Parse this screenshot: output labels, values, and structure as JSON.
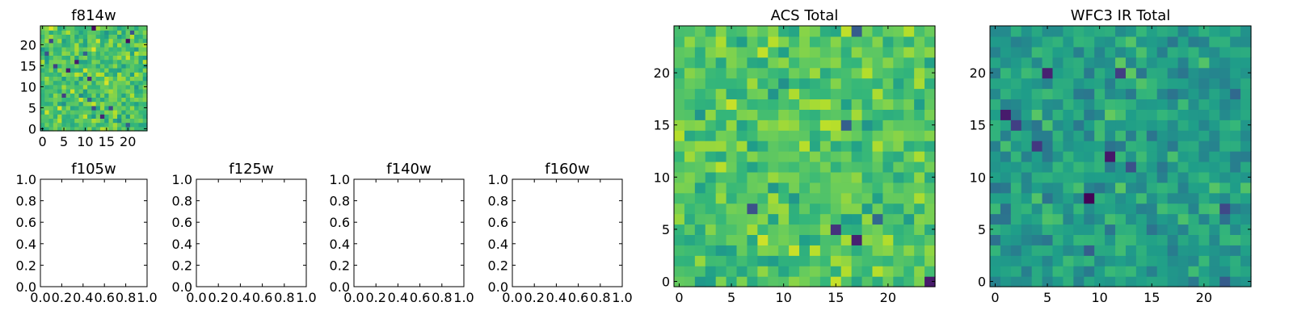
{
  "chart_data": [
    {
      "type": "heatmap",
      "title": "f814w",
      "xticks": [
        "0",
        "5",
        "10",
        "15",
        "20"
      ],
      "yticks": [
        "0",
        "5",
        "10",
        "15",
        "20"
      ],
      "xlim": [
        -0.5,
        24.5
      ],
      "ylim": [
        -0.5,
        24.5
      ],
      "grid_size": 25,
      "colormap": "viridis",
      "seed": 814,
      "base": 0.72,
      "spread": 0.18,
      "dark_spots": 16
    },
    {
      "type": "empty",
      "title": "f105w",
      "xticks": [
        "0.0",
        "0.2",
        "0.4",
        "0.6",
        "0.8",
        "1.0"
      ],
      "yticks": [
        "0.0",
        "0.2",
        "0.4",
        "0.6",
        "0.8",
        "1.0"
      ],
      "xlim": [
        0,
        1
      ],
      "ylim": [
        0,
        1
      ]
    },
    {
      "type": "empty",
      "title": "f125w",
      "xticks": [
        "0.0",
        "0.2",
        "0.4",
        "0.6",
        "0.8",
        "1.0"
      ],
      "yticks": [
        "0.0",
        "0.2",
        "0.4",
        "0.6",
        "0.8",
        "1.0"
      ],
      "xlim": [
        0,
        1
      ],
      "ylim": [
        0,
        1
      ]
    },
    {
      "type": "empty",
      "title": "f140w",
      "xticks": [
        "0.0",
        "0.2",
        "0.4",
        "0.6",
        "0.8",
        "1.0"
      ],
      "yticks": [
        "0.0",
        "0.2",
        "0.4",
        "0.6",
        "0.8",
        "1.0"
      ],
      "xlim": [
        0,
        1
      ],
      "ylim": [
        0,
        1
      ]
    },
    {
      "type": "empty",
      "title": "f160w",
      "xticks": [
        "0.0",
        "0.2",
        "0.4",
        "0.6",
        "0.8",
        "1.0"
      ],
      "yticks": [
        "0.0",
        "0.2",
        "0.4",
        "0.6",
        "0.8",
        "1.0"
      ],
      "xlim": [
        0,
        1
      ],
      "ylim": [
        0,
        1
      ]
    },
    {
      "type": "heatmap",
      "title": "ACS Total",
      "xticks": [
        "0",
        "5",
        "10",
        "15",
        "20"
      ],
      "yticks": [
        "0",
        "5",
        "10",
        "15",
        "20"
      ],
      "xlim": [
        -0.5,
        24.5
      ],
      "ylim": [
        -0.5,
        24.5
      ],
      "grid_size": 25,
      "colormap": "viridis",
      "seed": 222,
      "base": 0.72,
      "spread": 0.17,
      "dark_spots": 7
    },
    {
      "type": "heatmap",
      "title": "WFC3 IR Total",
      "xticks": [
        "0",
        "5",
        "10",
        "15",
        "20"
      ],
      "yticks": [
        "0",
        "5",
        "10",
        "15",
        "20"
      ],
      "xlim": [
        -0.5,
        24.5
      ],
      "ylim": [
        -0.5,
        24.5
      ],
      "grid_size": 25,
      "colormap": "viridis",
      "seed": 333,
      "base": 0.55,
      "spread": 0.16,
      "dark_spots": 12
    }
  ]
}
